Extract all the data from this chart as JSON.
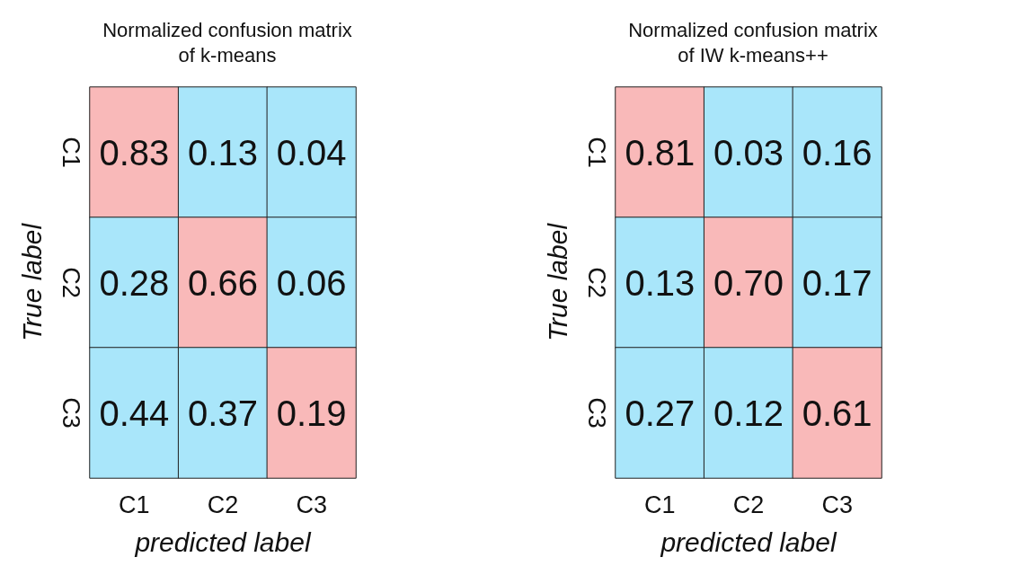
{
  "chart_data": [
    {
      "type": "heatmap",
      "title": "Normalized confusion matrix\nof k-means",
      "xlabel": "predicted label",
      "ylabel": "True label",
      "categories": [
        "C1",
        "C2",
        "C3"
      ],
      "y_categories": [
        "C1",
        "C2",
        "C3"
      ],
      "cells": [
        [
          0.83,
          0.13,
          0.04
        ],
        [
          0.28,
          0.66,
          0.06
        ],
        [
          0.44,
          0.37,
          0.19
        ]
      ],
      "cell_labels": [
        [
          "0.83",
          "0.13",
          "0.04"
        ],
        [
          "0.28",
          "0.66",
          "0.06"
        ],
        [
          "0.44",
          "0.37",
          "0.19"
        ]
      ],
      "data_labels": true,
      "colors": [
        [
          "#f9b9b9",
          "#a9e6fa",
          "#a9e6fa"
        ],
        [
          "#a9e6fa",
          "#f9b9b9",
          "#a9e6fa"
        ],
        [
          "#a9e6fa",
          "#a9e6fa",
          "#f9b9b9"
        ]
      ]
    },
    {
      "type": "heatmap",
      "title": "Normalized confusion matrix\nof IW k-means++",
      "xlabel": "predicted label",
      "ylabel": "True label",
      "categories": [
        "C1",
        "C2",
        "C3"
      ],
      "y_categories": [
        "C1",
        "C2",
        "C3"
      ],
      "cells": [
        [
          0.81,
          0.03,
          0.16
        ],
        [
          0.13,
          0.7,
          0.17
        ],
        [
          0.27,
          0.12,
          0.61
        ]
      ],
      "cell_labels": [
        [
          "0.81",
          "0.03",
          "0.16"
        ],
        [
          "0.13",
          "0.70",
          "0.17"
        ],
        [
          "0.27",
          "0.12",
          "0.61"
        ]
      ],
      "data_labels": true,
      "colors": [
        [
          "#f9b9b9",
          "#a9e6fa",
          "#a9e6fa"
        ],
        [
          "#a9e6fa",
          "#f9b9b9",
          "#a9e6fa"
        ],
        [
          "#a9e6fa",
          "#a9e6fa",
          "#f9b9b9"
        ]
      ]
    }
  ]
}
